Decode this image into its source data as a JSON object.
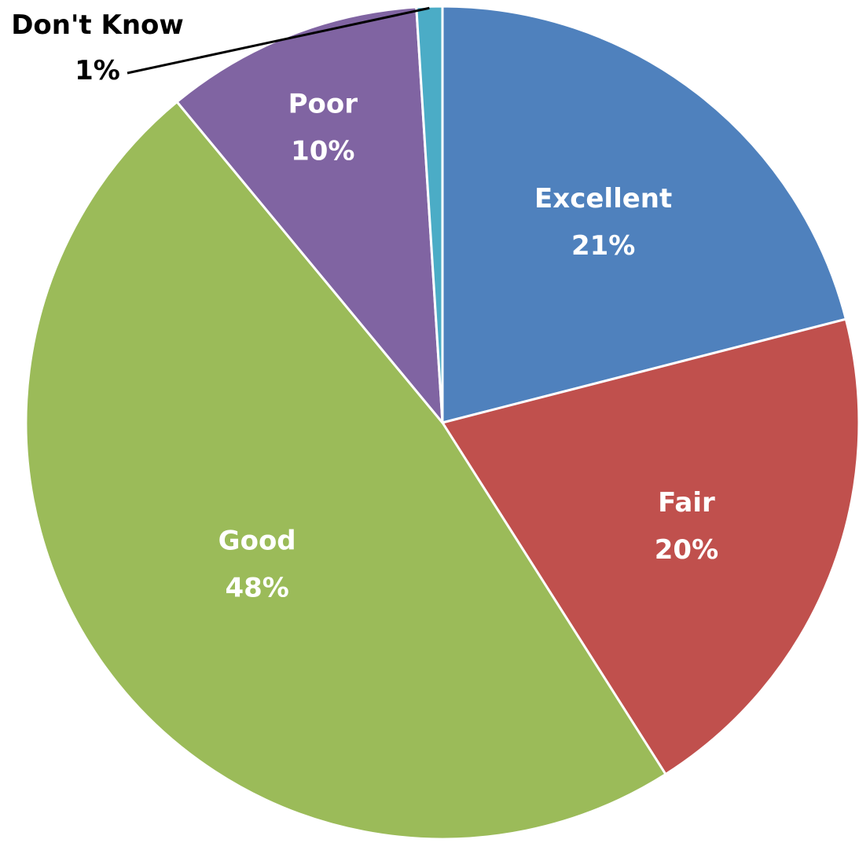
{
  "chart_data": {
    "type": "pie",
    "title": "",
    "start_angle_deg": 0,
    "direction": "clockwise",
    "slices": [
      {
        "label": "Excellent",
        "value": 21,
        "value_label": "21%",
        "color": "#4F81BD",
        "label_style": "inside"
      },
      {
        "label": "Fair",
        "value": 20,
        "value_label": "20%",
        "color": "#C0504D",
        "label_style": "inside"
      },
      {
        "label": "Good",
        "value": 48,
        "value_label": "48%",
        "color": "#9BBB59",
        "label_style": "inside"
      },
      {
        "label": "Poor",
        "value": 10,
        "value_label": "10%",
        "color": "#8064A2",
        "label_style": "inside"
      },
      {
        "label": "Don't Know",
        "value": 1,
        "value_label": "1%",
        "color": "#4BACC6",
        "label_style": "callout"
      }
    ]
  }
}
